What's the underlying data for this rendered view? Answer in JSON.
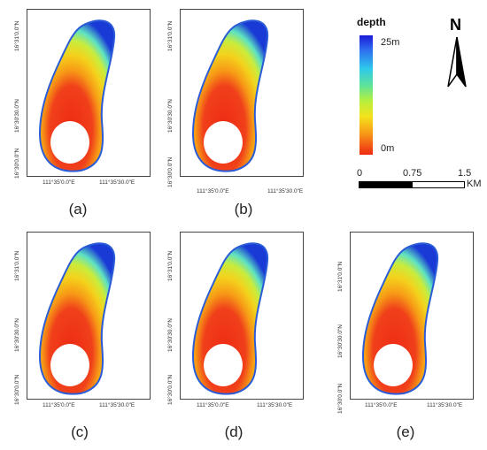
{
  "panels": [
    {
      "caption": "(a)",
      "lat_labels": [
        "16°31'0.0\"N",
        "16°30'30.0\"N",
        "16°30'0.0\"N"
      ],
      "lon_labels": [
        "111°35'0.0\"E",
        "111°35'30.0\"E"
      ]
    },
    {
      "caption": "(b)",
      "lat_labels": [
        "16°31'0.0\"N",
        "16°30'30.0\"N",
        "16°30'0.0\"N"
      ],
      "lon_labels": [
        "111°35'0.0\"E",
        "111°35'30.0\"E"
      ]
    },
    {
      "caption": "(c)",
      "lat_labels": [
        "16°31'0.0\"N",
        "16°30'30.0\"N",
        "16°30'0.0\"N"
      ],
      "lon_labels": [
        "111°35'0.0\"E",
        "111°35'30.0\"E"
      ]
    },
    {
      "caption": "(d)",
      "lat_labels": [
        "16°31'0.0\"N",
        "16°30'30.0\"N",
        "16°30'0.0\"N"
      ],
      "lon_labels": [
        "111°35'0.0\"E",
        "111°35'30.0\"E"
      ]
    },
    {
      "caption": "(e)",
      "lat_labels": [
        "16°31'0.0\"N",
        "16°30'30.0\"N",
        "16°30'0.0\"N"
      ],
      "lon_labels": [
        "111°35'0.0\"E",
        "111°35'30.0\"E"
      ]
    }
  ],
  "legend": {
    "title": "depth",
    "max_label": "25m",
    "min_label": "0m",
    "colors": [
      "#1a1ad6",
      "#2ec9ea",
      "#b7ef3c",
      "#f4e21c",
      "#f79a16",
      "#ee2a14"
    ]
  },
  "north_arrow": {
    "label": "N",
    "icon": "north-arrow-icon"
  },
  "scale_bar": {
    "ticks": [
      "0",
      "0.75",
      "1.5"
    ],
    "unit": "KM"
  }
}
